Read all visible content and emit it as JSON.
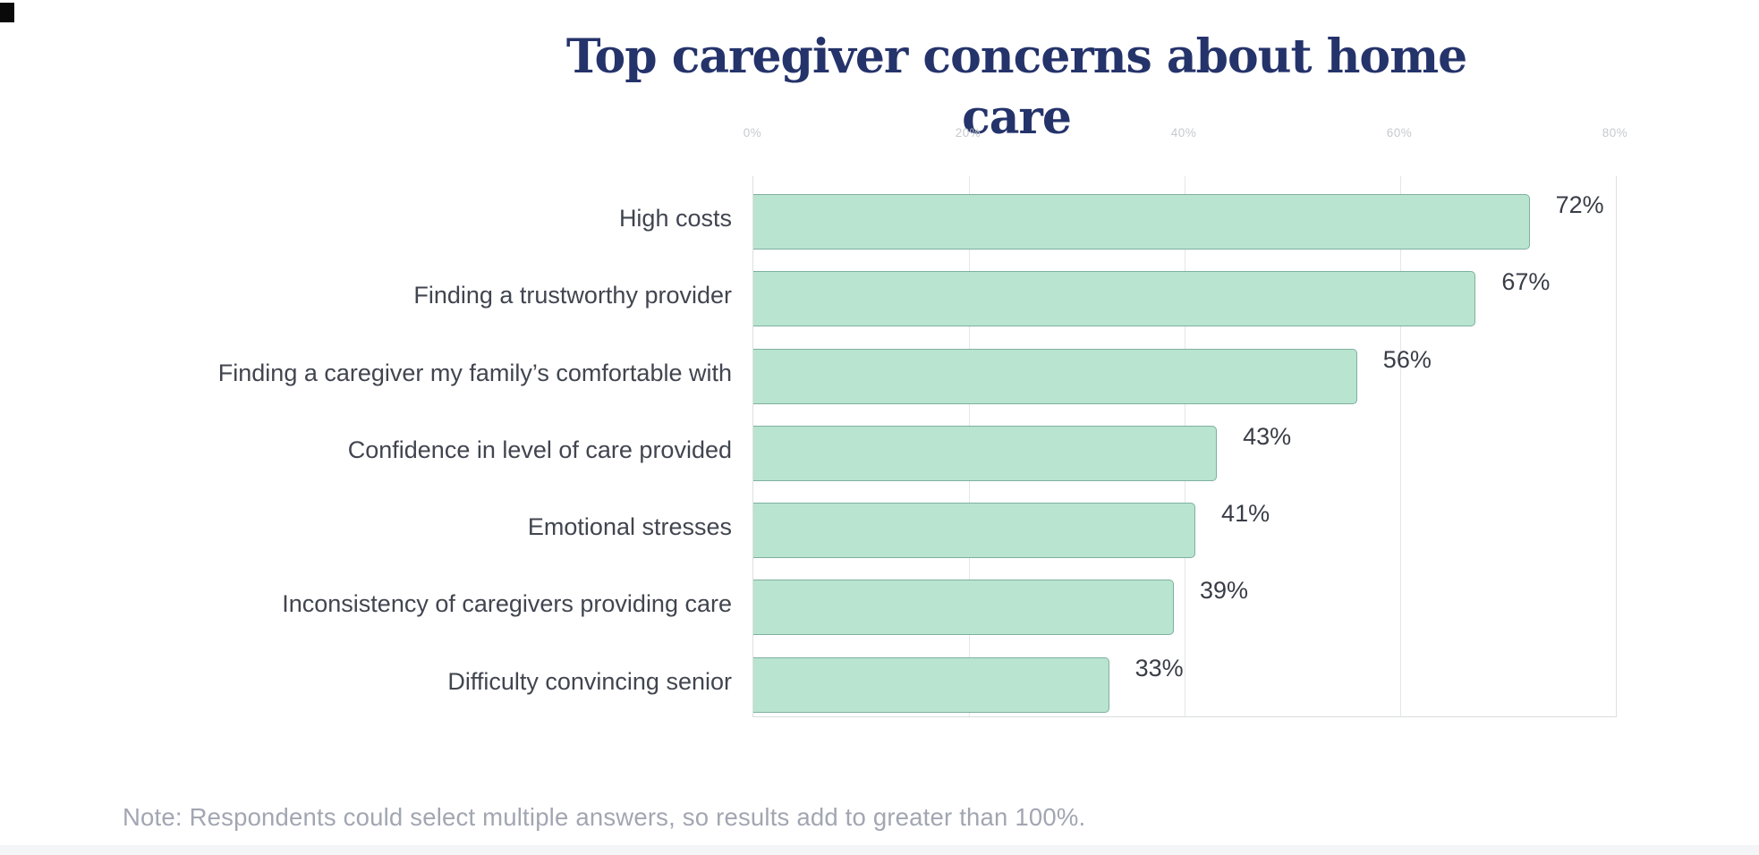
{
  "chart_data": {
    "type": "bar",
    "orientation": "horizontal",
    "title": "Top caregiver concerns about home care",
    "categories": [
      "High costs",
      "Finding a trustworthy provider",
      "Finding a caregiver my family’s comfortable with",
      "Confidence in level of care provided",
      "Emotional stresses",
      "Inconsistency of caregivers providing care",
      "Difficulty convincing senior"
    ],
    "values": [
      72,
      67,
      56,
      43,
      41,
      39,
      33
    ],
    "value_labels": [
      "72%",
      "67%",
      "56%",
      "43%",
      "41%",
      "39%",
      "33%"
    ],
    "xlabel": "",
    "ylabel": "",
    "xlim": [
      0,
      80
    ],
    "x_ticks": [
      "0%",
      "20%",
      "40%",
      "60%",
      "80%"
    ],
    "x_tick_values": [
      0,
      20,
      40,
      60,
      80
    ],
    "grid": "vertical-on",
    "legend": "none",
    "colors": {
      "bar_fill": "#b8e4d0",
      "bar_border": "#7fb0a0",
      "title": "#25336b",
      "category_label": "#41454f",
      "value_label": "#393d47",
      "tick_label": "#c6cacd",
      "gridline": "#e4e6e7",
      "note_text": "#a2a6b2"
    }
  },
  "note": "Note: Respondents could select multiple answers, so results add to greater than 100%."
}
